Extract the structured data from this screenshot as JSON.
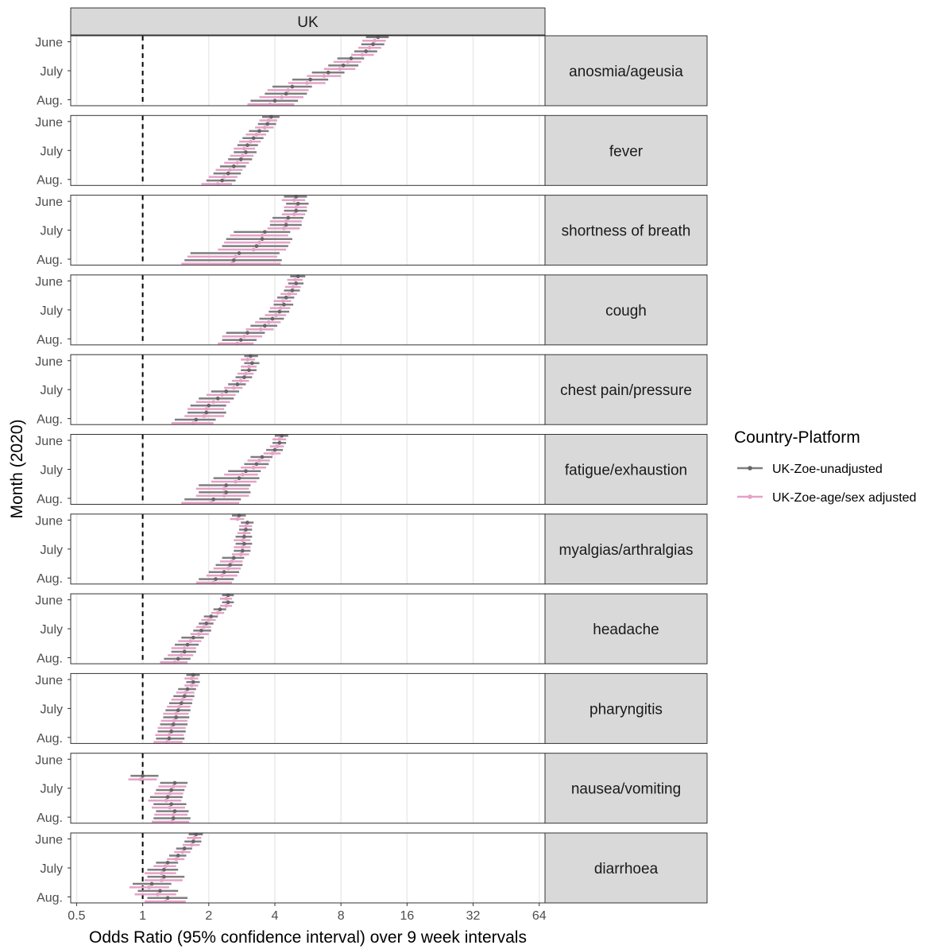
{
  "chart_data": {
    "type": "forest",
    "facet_column": "UK",
    "xlabel": "Odds Ratio (95% confidence interval) over 9 week intervals",
    "ylabel": "Month (2020)",
    "x_scale": "log2",
    "xlim": [
      0.47,
      68
    ],
    "x_ticks": [
      0.5,
      1,
      2,
      4,
      8,
      16,
      32,
      64
    ],
    "x_tick_labels": [
      "0.5",
      "1",
      "2",
      "4",
      "8",
      "16",
      "32",
      "64"
    ],
    "reference_line": 1,
    "y_tick_labels": [
      "June",
      "July",
      "Aug."
    ],
    "intervals_per_panel": 10,
    "legend": {
      "title": "Country-Platform",
      "entries": [
        {
          "label": "UK-Zoe-unadjusted",
          "color": "#7f7f7f"
        },
        {
          "label": "UK-Zoe-age/sex adjusted",
          "color": "#e6a0c8"
        }
      ]
    },
    "panels": [
      {
        "label": "anosmia/ageusia",
        "unadjusted": {
          "or": [
            11.8,
            11.2,
            10.4,
            8.9,
            8.2,
            7.0,
            5.8,
            4.8,
            4.5,
            4.0
          ],
          "lo": [
            10.4,
            9.9,
            9.2,
            7.7,
            7.0,
            5.9,
            4.8,
            3.9,
            3.6,
            3.1
          ],
          "hi": [
            13.2,
            12.6,
            11.7,
            10.2,
            9.6,
            8.3,
            7.0,
            5.9,
            5.6,
            5.1
          ]
        },
        "adjusted": {
          "or": [
            11.4,
            10.8,
            10.0,
            8.6,
            7.9,
            6.7,
            5.6,
            4.6,
            4.3,
            3.8
          ],
          "lo": [
            10.0,
            9.6,
            8.9,
            7.4,
            6.7,
            5.6,
            4.6,
            3.7,
            3.4,
            3.0
          ],
          "hi": [
            12.8,
            12.2,
            11.3,
            9.9,
            9.3,
            8.0,
            6.8,
            5.7,
            5.4,
            4.9
          ]
        }
      },
      {
        "label": "fever",
        "unadjusted": {
          "or": [
            3.85,
            3.7,
            3.4,
            3.2,
            3.0,
            2.95,
            2.8,
            2.6,
            2.45,
            2.3
          ],
          "lo": [
            3.5,
            3.35,
            3.05,
            2.85,
            2.7,
            2.6,
            2.45,
            2.25,
            2.1,
            1.95
          ],
          "hi": [
            4.2,
            4.05,
            3.75,
            3.55,
            3.35,
            3.3,
            3.15,
            2.95,
            2.8,
            2.65
          ]
        },
        "adjusted": {
          "or": [
            3.75,
            3.6,
            3.3,
            3.1,
            2.9,
            2.85,
            2.7,
            2.5,
            2.35,
            2.2
          ],
          "lo": [
            3.4,
            3.25,
            2.95,
            2.75,
            2.6,
            2.5,
            2.35,
            2.15,
            2.0,
            1.85
          ],
          "hi": [
            4.1,
            3.95,
            3.65,
            3.45,
            3.25,
            3.2,
            3.05,
            2.85,
            2.7,
            2.55
          ]
        }
      },
      {
        "label": "shortness of breath",
        "unadjusted": {
          "or": [
            5.0,
            5.1,
            5.0,
            4.6,
            4.5,
            3.6,
            3.5,
            3.3,
            2.75,
            2.6
          ],
          "lo": [
            4.4,
            4.5,
            4.4,
            3.9,
            3.8,
            2.6,
            2.4,
            2.3,
            1.65,
            1.55
          ],
          "hi": [
            5.6,
            5.7,
            5.6,
            5.4,
            5.3,
            4.7,
            4.8,
            4.6,
            4.2,
            4.3
          ]
        },
        "adjusted": {
          "or": [
            4.9,
            5.0,
            4.9,
            4.5,
            4.4,
            3.5,
            3.4,
            3.2,
            2.65,
            2.55
          ],
          "lo": [
            4.3,
            4.4,
            4.3,
            3.8,
            3.7,
            2.5,
            2.35,
            2.2,
            1.6,
            1.5
          ],
          "hi": [
            5.5,
            5.6,
            5.5,
            5.3,
            5.2,
            4.6,
            4.7,
            4.5,
            4.1,
            4.25
          ]
        }
      },
      {
        "label": "cough",
        "unadjusted": {
          "or": [
            5.1,
            5.0,
            4.8,
            4.5,
            4.4,
            4.2,
            3.9,
            3.6,
            3.0,
            2.8
          ],
          "lo": [
            4.7,
            4.6,
            4.4,
            4.1,
            3.95,
            3.75,
            3.4,
            3.1,
            2.4,
            2.3
          ],
          "hi": [
            5.5,
            5.4,
            5.2,
            4.9,
            4.85,
            4.65,
            4.4,
            4.1,
            3.6,
            3.3
          ]
        },
        "adjusted": {
          "or": [
            4.95,
            4.85,
            4.65,
            4.35,
            4.25,
            4.05,
            3.75,
            3.45,
            2.9,
            2.7
          ],
          "lo": [
            4.55,
            4.45,
            4.25,
            3.95,
            3.8,
            3.6,
            3.25,
            2.95,
            2.3,
            2.2
          ],
          "hi": [
            5.35,
            5.25,
            5.05,
            4.75,
            4.7,
            4.5,
            4.25,
            3.95,
            3.5,
            3.2
          ]
        }
      },
      {
        "label": "chest pain/pressure",
        "unadjusted": {
          "or": [
            3.1,
            3.15,
            3.05,
            2.9,
            2.7,
            2.4,
            2.2,
            2.0,
            1.95,
            1.75
          ],
          "lo": [
            2.9,
            2.9,
            2.8,
            2.65,
            2.45,
            2.05,
            1.8,
            1.65,
            1.6,
            1.4
          ],
          "hi": [
            3.35,
            3.4,
            3.3,
            3.15,
            2.95,
            2.75,
            2.6,
            2.4,
            2.4,
            2.15
          ]
        },
        "adjusted": {
          "or": [
            3.0,
            3.05,
            2.95,
            2.8,
            2.6,
            2.3,
            2.1,
            1.95,
            1.9,
            1.7
          ],
          "lo": [
            2.8,
            2.8,
            2.7,
            2.55,
            2.35,
            1.95,
            1.75,
            1.6,
            1.55,
            1.35
          ],
          "hi": [
            3.25,
            3.3,
            3.2,
            3.05,
            2.85,
            2.65,
            2.5,
            2.35,
            2.35,
            2.1
          ]
        }
      },
      {
        "label": "fatigue/exhaustion",
        "unadjusted": {
          "or": [
            4.3,
            4.2,
            4.0,
            3.5,
            3.3,
            2.95,
            2.75,
            2.4,
            2.4,
            2.1
          ],
          "lo": [
            4.0,
            3.9,
            3.65,
            3.1,
            2.9,
            2.45,
            2.1,
            1.8,
            1.8,
            1.55
          ],
          "hi": [
            4.6,
            4.5,
            4.35,
            3.9,
            3.75,
            3.45,
            3.4,
            3.1,
            3.1,
            2.8
          ]
        },
        "adjusted": {
          "or": [
            4.2,
            4.1,
            3.9,
            3.4,
            3.2,
            2.85,
            2.65,
            2.35,
            2.35,
            2.05
          ],
          "lo": [
            3.9,
            3.8,
            3.55,
            3.0,
            2.8,
            2.35,
            2.05,
            1.75,
            1.75,
            1.5
          ],
          "hi": [
            4.5,
            4.4,
            4.25,
            3.8,
            3.65,
            3.35,
            3.3,
            3.05,
            3.05,
            2.75
          ]
        }
      },
      {
        "label": "myalgias/arthralgias",
        "unadjusted": {
          "or": [
            2.75,
            3.0,
            2.95,
            2.9,
            2.9,
            2.85,
            2.6,
            2.5,
            2.35,
            2.15
          ],
          "lo": [
            2.55,
            2.8,
            2.75,
            2.65,
            2.65,
            2.6,
            2.3,
            2.15,
            2.0,
            1.8
          ],
          "hi": [
            2.95,
            3.2,
            3.15,
            3.15,
            3.15,
            3.1,
            2.9,
            2.85,
            2.75,
            2.6
          ]
        },
        "adjusted": {
          "or": [
            2.7,
            2.95,
            2.9,
            2.85,
            2.85,
            2.8,
            2.55,
            2.45,
            2.3,
            2.1
          ],
          "lo": [
            2.5,
            2.75,
            2.7,
            2.6,
            2.6,
            2.55,
            2.25,
            2.1,
            1.95,
            1.75
          ],
          "hi": [
            2.9,
            3.15,
            3.1,
            3.1,
            3.1,
            3.05,
            2.85,
            2.8,
            2.7,
            2.55
          ]
        }
      },
      {
        "label": "headache",
        "unadjusted": {
          "or": [
            2.45,
            2.45,
            2.25,
            2.05,
            1.95,
            1.85,
            1.7,
            1.6,
            1.55,
            1.45
          ],
          "lo": [
            2.3,
            2.3,
            2.1,
            1.9,
            1.8,
            1.7,
            1.5,
            1.4,
            1.35,
            1.25
          ],
          "hi": [
            2.6,
            2.6,
            2.4,
            2.2,
            2.1,
            2.05,
            1.9,
            1.8,
            1.75,
            1.65
          ]
        },
        "adjusted": {
          "or": [
            2.4,
            2.4,
            2.2,
            2.0,
            1.9,
            1.8,
            1.65,
            1.55,
            1.5,
            1.4
          ],
          "lo": [
            2.25,
            2.25,
            2.05,
            1.85,
            1.75,
            1.65,
            1.45,
            1.35,
            1.3,
            1.2
          ],
          "hi": [
            2.55,
            2.55,
            2.35,
            2.15,
            2.05,
            2.0,
            1.85,
            1.75,
            1.7,
            1.6
          ]
        }
      },
      {
        "label": "pharyngitis",
        "unadjusted": {
          "or": [
            1.7,
            1.7,
            1.6,
            1.55,
            1.5,
            1.45,
            1.42,
            1.38,
            1.35,
            1.32
          ],
          "lo": [
            1.58,
            1.58,
            1.45,
            1.38,
            1.32,
            1.27,
            1.24,
            1.2,
            1.17,
            1.15
          ],
          "hi": [
            1.82,
            1.82,
            1.75,
            1.72,
            1.68,
            1.65,
            1.63,
            1.6,
            1.57,
            1.55
          ]
        },
        "adjusted": {
          "or": [
            1.67,
            1.67,
            1.57,
            1.52,
            1.47,
            1.42,
            1.39,
            1.35,
            1.32,
            1.29
          ],
          "lo": [
            1.55,
            1.55,
            1.42,
            1.35,
            1.29,
            1.24,
            1.21,
            1.17,
            1.14,
            1.12
          ],
          "hi": [
            1.79,
            1.79,
            1.72,
            1.69,
            1.65,
            1.62,
            1.6,
            1.57,
            1.54,
            1.52
          ]
        }
      },
      {
        "label": "nausea/vomiting",
        "unadjusted": {
          "or": [
            null,
            null,
            null,
            1.0,
            1.4,
            1.35,
            1.3,
            1.35,
            1.4,
            1.38
          ],
          "lo": [
            null,
            null,
            null,
            0.88,
            1.2,
            1.15,
            1.08,
            1.12,
            1.15,
            1.12
          ],
          "hi": [
            null,
            null,
            null,
            1.18,
            1.6,
            1.55,
            1.52,
            1.58,
            1.62,
            1.65
          ]
        },
        "adjusted": {
          "or": [
            null,
            null,
            null,
            0.98,
            1.38,
            1.33,
            1.28,
            1.33,
            1.38,
            1.36
          ],
          "lo": [
            null,
            null,
            null,
            0.86,
            1.18,
            1.13,
            1.06,
            1.1,
            1.13,
            1.1
          ],
          "hi": [
            null,
            null,
            null,
            1.16,
            1.58,
            1.53,
            1.5,
            1.56,
            1.6,
            1.63
          ]
        }
      },
      {
        "label": "diarrhoea",
        "unadjusted": {
          "or": [
            1.75,
            1.7,
            1.55,
            1.45,
            1.3,
            1.25,
            1.25,
            1.1,
            1.2,
            1.3
          ],
          "lo": [
            1.62,
            1.55,
            1.42,
            1.32,
            1.15,
            1.05,
            1.05,
            0.9,
            0.95,
            1.05
          ],
          "hi": [
            1.88,
            1.85,
            1.68,
            1.58,
            1.45,
            1.45,
            1.55,
            1.35,
            1.45,
            1.6
          ]
        },
        "adjusted": {
          "or": [
            1.72,
            1.67,
            1.52,
            1.42,
            1.27,
            1.22,
            1.22,
            1.07,
            1.17,
            1.27
          ],
          "lo": [
            1.59,
            1.52,
            1.39,
            1.29,
            1.12,
            1.02,
            1.02,
            0.87,
            0.92,
            1.02
          ],
          "hi": [
            1.85,
            1.82,
            1.65,
            1.55,
            1.42,
            1.42,
            1.52,
            1.32,
            1.42,
            1.57
          ]
        }
      }
    ]
  }
}
